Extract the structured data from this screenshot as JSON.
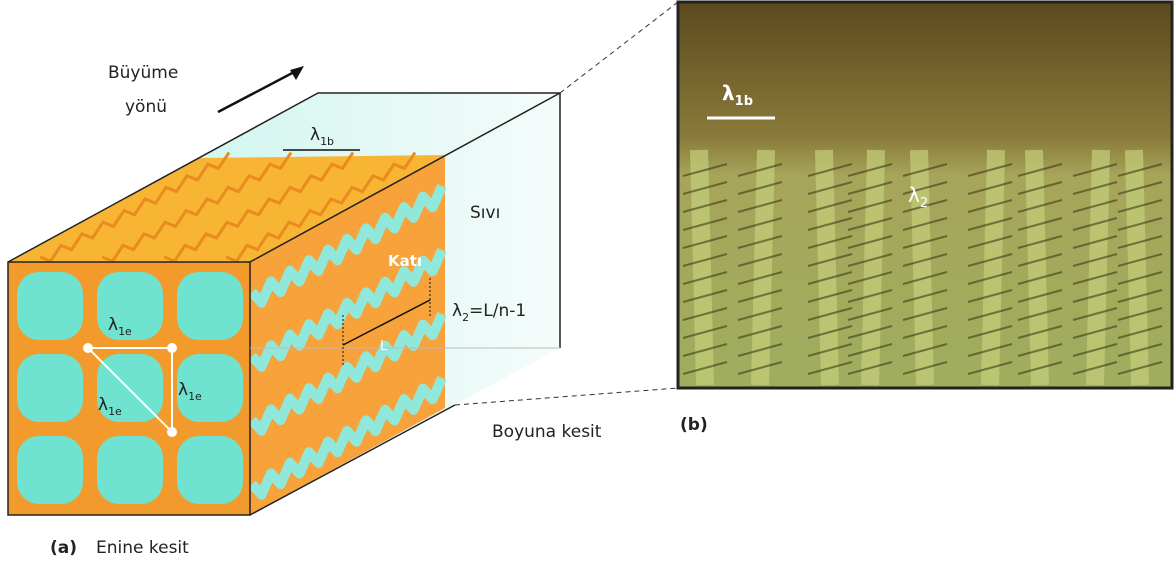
{
  "growth_direction": {
    "line1": "Büyüme",
    "line2": "yönü"
  },
  "diagram": {
    "lambda_1b": {
      "symbol": "λ",
      "sub": "1b"
    },
    "liquid": "Sıvı",
    "solid": "Katı",
    "lambda_2_formula": {
      "symbol": "λ",
      "sub": "2",
      "rest": "=L/n-1"
    },
    "L": "L",
    "lambda_1e": [
      {
        "symbol": "λ",
        "sub": "1e"
      },
      {
        "symbol": "λ",
        "sub": "1e"
      },
      {
        "symbol": "λ",
        "sub": "1e"
      }
    ],
    "longitudinal": "Boyuna kesit",
    "panel_a": "(a)",
    "transverse": "Enine kesit"
  },
  "photo": {
    "panel_b": "(b)",
    "lambda_1b": {
      "symbol": "λ",
      "sub": "1b"
    },
    "lambda_2": {
      "symbol": "λ",
      "sub": "2"
    }
  }
}
